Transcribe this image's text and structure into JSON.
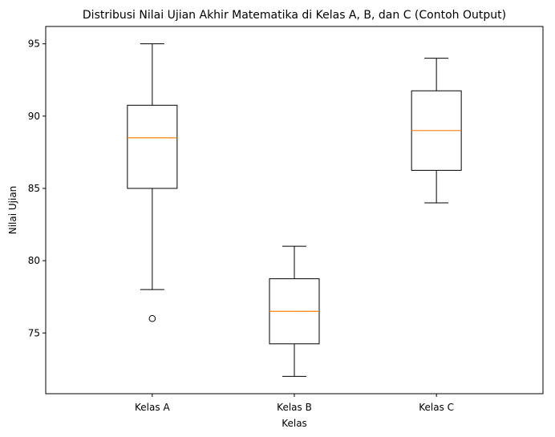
{
  "chart_data": {
    "type": "boxplot",
    "title": "Distribusi Nilai Ujian Akhir Matematika di Kelas A, B, dan C (Contoh Output)",
    "xlabel": "Kelas",
    "ylabel": "Nilai Ujian",
    "ylim": [
      70.8,
      96.2
    ],
    "yticks": [
      75,
      80,
      85,
      90,
      95
    ],
    "grid": false,
    "categories": [
      "Kelas A",
      "Kelas B",
      "Kelas C"
    ],
    "boxes": [
      {
        "category": "Kelas A",
        "whisker_low": 78,
        "q1": 85,
        "median": 88.5,
        "q3": 90.75,
        "whisker_high": 95,
        "outliers": [
          76
        ]
      },
      {
        "category": "Kelas B",
        "whisker_low": 72,
        "q1": 74.25,
        "median": 76.5,
        "q3": 78.75,
        "whisker_high": 81,
        "outliers": []
      },
      {
        "category": "Kelas C",
        "whisker_low": 84,
        "q1": 86.25,
        "median": 89,
        "q3": 91.75,
        "whisker_high": 94,
        "outliers": []
      }
    ],
    "colors": {
      "box": "#000000",
      "median": "#ff7f0e",
      "outlier": "#000000"
    }
  }
}
